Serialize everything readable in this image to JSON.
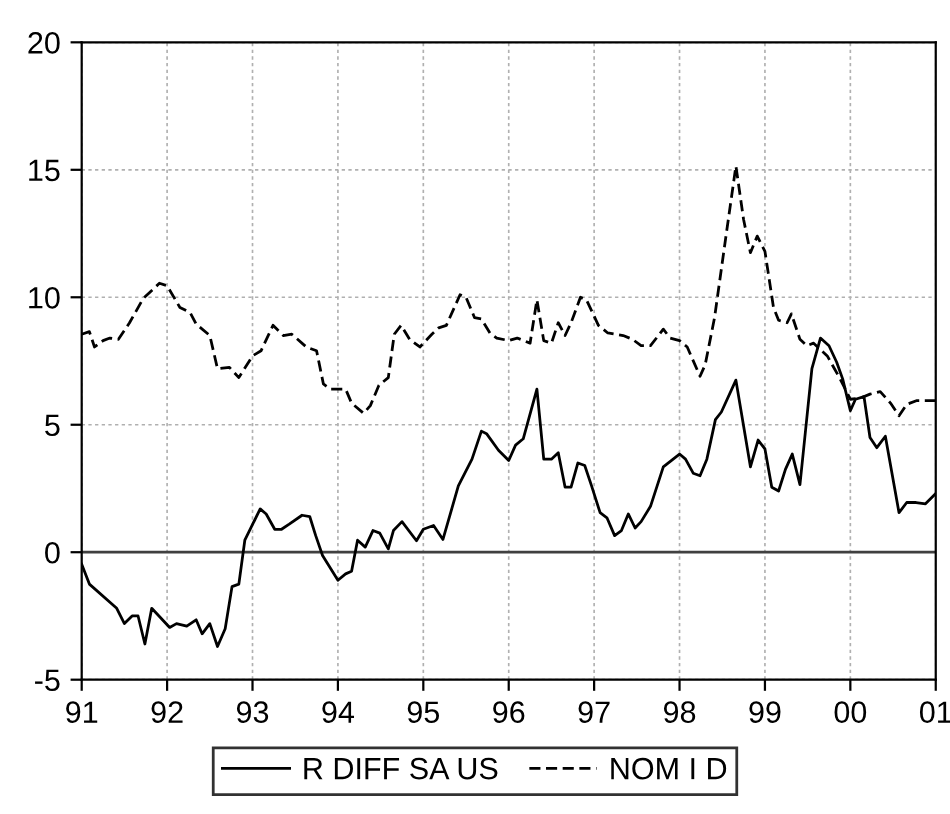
{
  "chart_data": {
    "type": "line",
    "xlim": [
      1991,
      2001
    ],
    "xticks": [
      {
        "value": 1991,
        "label": "91"
      },
      {
        "value": 1992,
        "label": "92"
      },
      {
        "value": 1993,
        "label": "93"
      },
      {
        "value": 1994,
        "label": "94"
      },
      {
        "value": 1995,
        "label": "95"
      },
      {
        "value": 1996,
        "label": "96"
      },
      {
        "value": 1997,
        "label": "97"
      },
      {
        "value": 1998,
        "label": "98"
      },
      {
        "value": 1999,
        "label": "99"
      },
      {
        "value": 2000,
        "label": "00"
      },
      {
        "value": 2001,
        "label": "01"
      }
    ],
    "ylim": [
      -5,
      20
    ],
    "yticks": [
      -5,
      0,
      5,
      10,
      15,
      20
    ],
    "grid": true,
    "legend": "bottom",
    "marker": "none",
    "ref_lines": [
      {
        "axis": "y",
        "value": 0,
        "color": "#404040",
        "line_style": "solid"
      }
    ],
    "series": [
      {
        "name": "R DIFF SA US",
        "color": "#000000",
        "line_style": "solid",
        "x": [
          1991.0,
          1991.09,
          1991.41,
          1991.5,
          1991.59,
          1991.66,
          1991.74,
          1991.82,
          1992.03,
          1992.11,
          1992.23,
          1992.34,
          1992.41,
          1992.5,
          1992.59,
          1992.68,
          1992.76,
          1992.84,
          1992.91,
          1993.09,
          1993.16,
          1993.26,
          1993.34,
          1993.43,
          1993.58,
          1993.67,
          1993.74,
          1993.82,
          1994.0,
          1994.09,
          1994.16,
          1994.23,
          1994.32,
          1994.41,
          1994.49,
          1994.59,
          1994.65,
          1994.75,
          1994.92,
          1995.0,
          1995.12,
          1995.23,
          1995.41,
          1995.57,
          1995.68,
          1995.74,
          1995.88,
          1996.0,
          1996.08,
          1996.17,
          1996.33,
          1996.41,
          1996.5,
          1996.58,
          1996.66,
          1996.73,
          1996.81,
          1996.89,
          1996.97,
          1997.07,
          1997.15,
          1997.24,
          1997.32,
          1997.4,
          1997.48,
          1997.55,
          1997.66,
          1997.81,
          1998.0,
          1998.07,
          1998.16,
          1998.24,
          1998.32,
          1998.42,
          1998.49,
          1998.66,
          1998.75,
          1998.83,
          1998.92,
          1999.0,
          1999.08,
          1999.16,
          1999.24,
          1999.32,
          1999.41,
          1999.55,
          1999.65,
          1999.75,
          1999.84,
          1999.91,
          2000.0,
          2000.06,
          2000.16,
          2000.23,
          2000.31,
          2000.41,
          2000.57,
          2000.66,
          2000.77,
          2000.88,
          2001.0
        ],
        "values": [
          -0.47,
          -1.25,
          -2.2,
          -2.8,
          -2.5,
          -2.5,
          -3.6,
          -2.2,
          -2.95,
          -2.8,
          -2.9,
          -2.65,
          -3.2,
          -2.8,
          -3.7,
          -3.0,
          -1.35,
          -1.25,
          0.47,
          1.7,
          1.5,
          0.9,
          0.9,
          1.1,
          1.45,
          1.4,
          0.65,
          -0.13,
          -1.1,
          -0.85,
          -0.75,
          0.47,
          0.2,
          0.85,
          0.75,
          0.13,
          0.85,
          1.2,
          0.45,
          0.9,
          1.05,
          0.5,
          2.6,
          3.65,
          4.75,
          4.65,
          4.0,
          3.6,
          4.2,
          4.45,
          6.4,
          3.65,
          3.65,
          3.9,
          2.55,
          2.55,
          3.5,
          3.4,
          2.6,
          1.55,
          1.35,
          0.65,
          0.85,
          1.5,
          0.95,
          1.2,
          1.8,
          3.35,
          3.85,
          3.65,
          3.1,
          3.0,
          3.65,
          5.2,
          5.5,
          6.75,
          4.95,
          3.35,
          4.4,
          4.05,
          2.55,
          2.4,
          3.25,
          3.85,
          2.65,
          7.2,
          8.4,
          8.1,
          7.45,
          6.8,
          5.55,
          6.0,
          6.1,
          4.5,
          4.1,
          4.55,
          1.55,
          1.95,
          1.95,
          1.9,
          2.3
        ]
      },
      {
        "name": "NOM I D",
        "color": "#000000",
        "line_style": "dashed",
        "x": [
          1991.0,
          1991.09,
          1991.15,
          1991.25,
          1991.33,
          1991.43,
          1991.56,
          1991.72,
          1991.91,
          1992.0,
          1992.15,
          1992.27,
          1992.34,
          1992.5,
          1992.59,
          1992.73,
          1992.84,
          1993.0,
          1993.1,
          1993.24,
          1993.36,
          1993.46,
          1993.63,
          1993.75,
          1993.83,
          1993.91,
          1994.09,
          1994.16,
          1994.3,
          1994.38,
          1994.48,
          1994.59,
          1994.66,
          1994.74,
          1994.84,
          1994.96,
          1995.1,
          1995.18,
          1995.27,
          1995.43,
          1995.5,
          1995.6,
          1995.68,
          1995.78,
          1995.86,
          1996.0,
          1996.1,
          1996.25,
          1996.33,
          1996.41,
          1996.5,
          1996.58,
          1996.66,
          1996.73,
          1996.84,
          1996.91,
          1997.05,
          1997.16,
          1997.34,
          1997.45,
          1997.55,
          1997.66,
          1997.81,
          1997.89,
          1998.0,
          1998.09,
          1998.24,
          1998.3,
          1998.41,
          1998.55,
          1998.66,
          1998.75,
          1998.83,
          1998.91,
          1999.0,
          1999.1,
          1999.16,
          1999.26,
          1999.31,
          1999.41,
          1999.49,
          1999.57,
          1999.73,
          1999.88,
          2000.0,
          2000.12,
          2000.23,
          2000.35,
          2000.47,
          2000.57,
          2000.66,
          2000.78,
          2000.9,
          2001.0
        ],
        "values": [
          8.55,
          8.65,
          8.05,
          8.3,
          8.4,
          8.35,
          9.0,
          9.95,
          10.55,
          10.45,
          9.6,
          9.4,
          8.95,
          8.5,
          7.2,
          7.25,
          6.85,
          7.7,
          7.9,
          8.9,
          8.5,
          8.55,
          8.05,
          7.9,
          6.6,
          6.4,
          6.4,
          5.85,
          5.45,
          5.75,
          6.55,
          6.85,
          8.55,
          8.9,
          8.35,
          8.05,
          8.55,
          8.8,
          8.9,
          10.1,
          10.0,
          9.2,
          9.15,
          8.6,
          8.4,
          8.3,
          8.4,
          8.2,
          9.9,
          8.3,
          8.2,
          9.0,
          8.5,
          9.0,
          10.0,
          9.9,
          8.9,
          8.6,
          8.5,
          8.35,
          8.1,
          8.1,
          8.75,
          8.4,
          8.3,
          8.05,
          6.9,
          7.35,
          9.2,
          12.55,
          15.15,
          13.05,
          11.75,
          12.4,
          11.8,
          9.6,
          9.1,
          9.0,
          9.35,
          8.35,
          8.1,
          8.2,
          7.7,
          6.8,
          6.0,
          6.05,
          6.2,
          6.3,
          5.85,
          5.35,
          5.8,
          5.95,
          5.95,
          5.95
        ]
      }
    ]
  }
}
